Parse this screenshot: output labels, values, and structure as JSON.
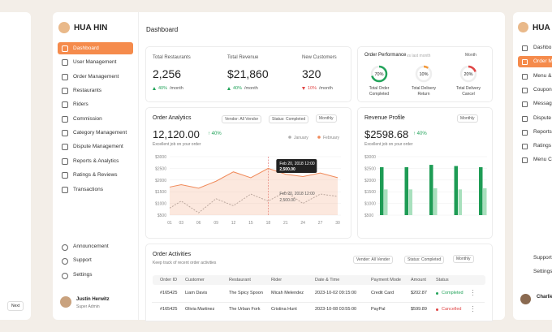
{
  "left_panel": {
    "next": "Next"
  },
  "brand": "HUA HIN",
  "sidebar": {
    "menu": [
      "Dashboard",
      "User Management",
      "Order Management",
      "Restaurants",
      "Riders",
      "Commission",
      "Category Management",
      "Dispute Management",
      "Reports & Analytics",
      "Ratings & Reviews",
      "Transactions"
    ],
    "bottom": [
      "Announcement",
      "Support",
      "Settings"
    ],
    "user": {
      "name": "Justin Herwitz",
      "role": "Super Admin"
    }
  },
  "header": {
    "title": "Dashboard"
  },
  "stats": [
    {
      "label": "Total Restaurants",
      "value": "2,256",
      "change": "40%",
      "period": "/month",
      "direction": "up"
    },
    {
      "label": "Total Revenue",
      "value": "$21,860",
      "change": "40%",
      "period": "/month",
      "direction": "up"
    },
    {
      "label": "New Customers",
      "value": "320",
      "change": "10%",
      "period": "/month",
      "direction": "down"
    }
  ],
  "order_performance": {
    "title": "Order Performance",
    "subtitle": "vs last month",
    "filter": "Month",
    "gauges": [
      {
        "value": 70,
        "value_label": "70%",
        "label": [
          "Total Order",
          "Completed"
        ],
        "color": "#22a35a"
      },
      {
        "value": 10,
        "value_label": "10%",
        "label": [
          "Total Delivery",
          "Return"
        ],
        "color": "#f39a3c"
      },
      {
        "value": 20,
        "value_label": "20%",
        "label": [
          "Total Delivery",
          "Cancel"
        ],
        "color": "#e04545"
      }
    ]
  },
  "order_analytics": {
    "title": "Order Analytics",
    "vendor": "Vendor: All Vendor",
    "status": "Status: Completed",
    "period": "Monthly",
    "total": "12,120.00",
    "change": "40%",
    "note": "Excellent job on your order",
    "xlim": [
      1,
      30
    ],
    "ylim": [
      500,
      3000
    ],
    "yticks": [
      {
        "value": 3000,
        "label": "$3000"
      },
      {
        "value": 2500,
        "label": "$2500"
      },
      {
        "value": 2000,
        "label": "$2000"
      },
      {
        "value": 1500,
        "label": "$1500"
      },
      {
        "value": 1000,
        "label": "$1000"
      },
      {
        "value": 500,
        "label": "$500"
      }
    ],
    "xticks": [
      {
        "value": 1,
        "label": "01"
      },
      {
        "value": 3,
        "label": "03"
      },
      {
        "value": 6,
        "label": "06"
      },
      {
        "value": 9,
        "label": "09"
      },
      {
        "value": 12,
        "label": "12"
      },
      {
        "value": 15,
        "label": "15"
      },
      {
        "value": 18,
        "label": "18"
      },
      {
        "value": 21,
        "label": "21"
      },
      {
        "value": 24,
        "label": "24"
      },
      {
        "value": 27,
        "label": "27"
      },
      {
        "value": 30,
        "label": "30"
      }
    ],
    "x": [
      1,
      3,
      6,
      9,
      12,
      15,
      18,
      21,
      24,
      27,
      30
    ],
    "series": [
      {
        "name": "January",
        "color": "#b0b0b0",
        "values": [
          800,
          1100,
          600,
          1200,
          900,
          1400,
          1100,
          1500,
          1000,
          1400,
          1300
        ]
      },
      {
        "name": "February",
        "color": "#f08a5a",
        "values": [
          1700,
          1800,
          1650,
          1950,
          2350,
          2100,
          2500,
          2250,
          2150,
          2300,
          2100
        ]
      }
    ],
    "tooltip": {
      "date": "Feb 20, 2018 12:00",
      "value": "2,500.00",
      "x": 18
    }
  },
  "revenue_profile": {
    "title": "Revenue Profile",
    "period": "Monthly",
    "total": "$2598.68",
    "change": "40%",
    "note": "Excellent job on your order",
    "ylim": [
      500,
      3000
    ],
    "yticks": [
      {
        "value": 3000,
        "label": "$3000"
      },
      {
        "value": 2500,
        "label": "$2500"
      },
      {
        "value": 2000,
        "label": "$2000"
      },
      {
        "value": 1500,
        "label": "$1500"
      },
      {
        "value": 1000,
        "label": "$1000"
      },
      {
        "value": 500,
        "label": "$500"
      }
    ],
    "series": [
      {
        "color": "#1e9c55",
        "values": [
          2550,
          2550,
          2650,
          2600,
          2550
        ]
      },
      {
        "color": "#a8e0bd",
        "values": [
          1600,
          1600,
          1650,
          1600,
          1650
        ]
      }
    ]
  },
  "order_activities": {
    "title": "Order Activities",
    "subtitle": "Keep track of recent order activities",
    "vendor": "Vender: All Vender",
    "status": "Status: Completed",
    "period": "Monthly",
    "columns": [
      "Order ID",
      "Customer",
      "Restaurant",
      "Rider",
      "Date & Time",
      "Payment Mode",
      "Amount",
      "Status"
    ],
    "rows": [
      [
        "#165425",
        "Liam Davis",
        "The Spicy Spoon",
        "Micah Melendez",
        "2023-10-02 09:15:00",
        "Credit Card",
        "$202.87",
        "Completed"
      ],
      [
        "#165425",
        "Olivia Martinez",
        "The Urban Fork",
        "Cristina Hunt",
        "2023-10-08 03:55:00",
        "PayPal",
        "$599.89",
        "Cancelled"
      ]
    ]
  },
  "right_panel": {
    "brand": "HUA HIN",
    "menu": [
      "Dashbo",
      "Order M",
      "Menu &",
      "Coupon",
      "Messag",
      "Dispute",
      "Reports",
      "Ratings",
      "Menu C"
    ],
    "bottom": [
      "Support",
      "Settings"
    ],
    "user": "Charlie"
  }
}
